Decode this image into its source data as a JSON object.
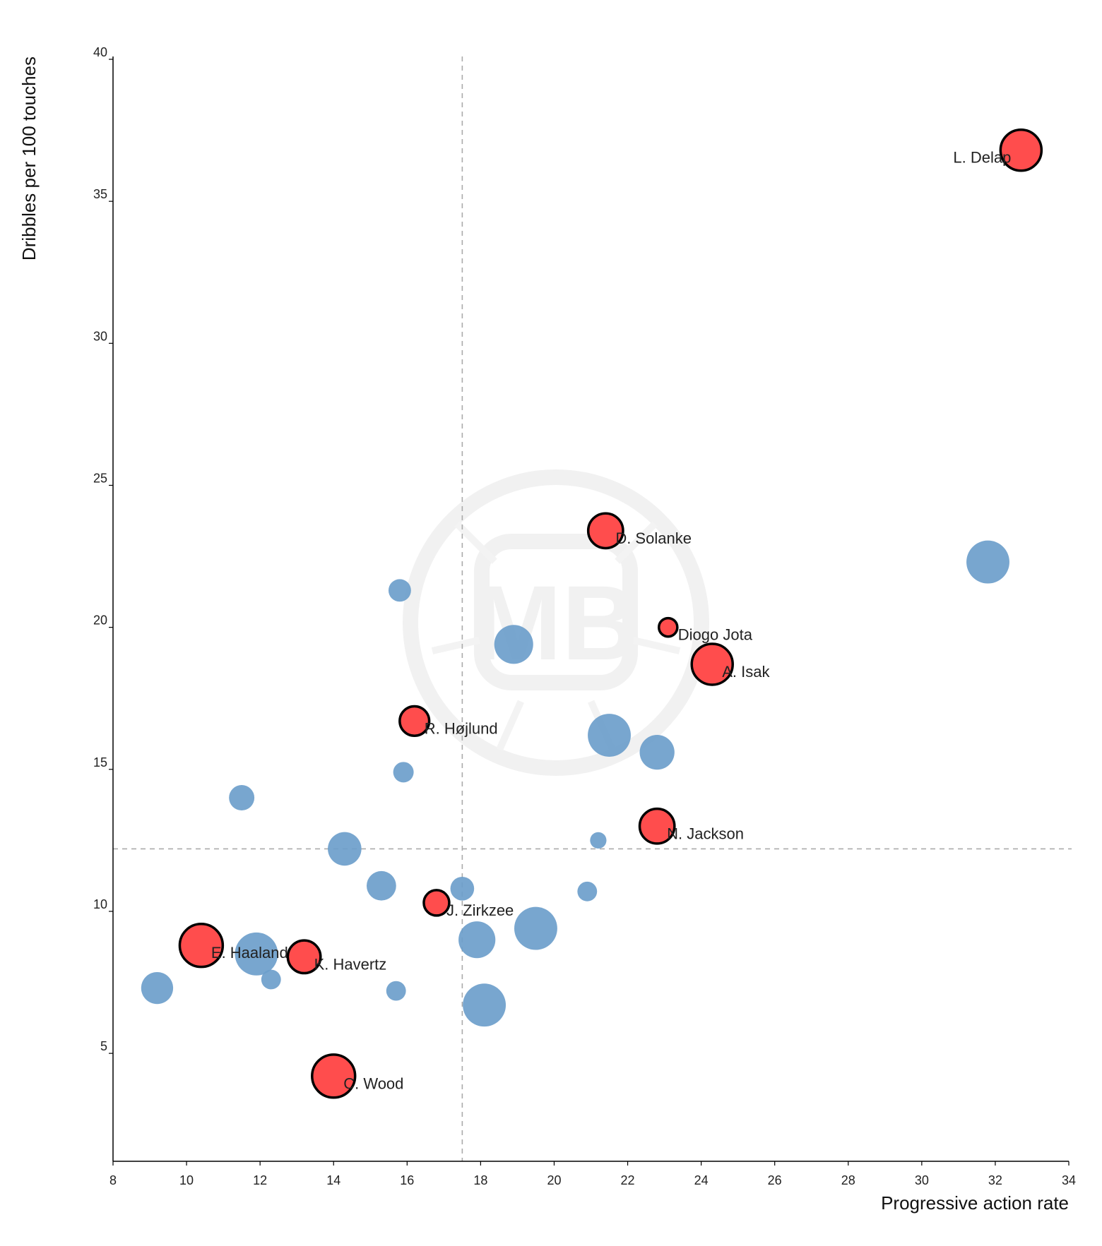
{
  "chart_data": {
    "type": "scatter",
    "title": "",
    "xlabel": "Progressive action rate",
    "ylabel": "Dribbles per 100 touches",
    "xlim": [
      8,
      34
    ],
    "ylim": [
      1.2,
      40
    ],
    "x_ticks": [
      "8",
      "10",
      "12",
      "14",
      "16",
      "18",
      "20",
      "22",
      "24",
      "26",
      "28",
      "30",
      "32",
      "34"
    ],
    "y_ticks": [
      "5",
      "10",
      "15",
      "20",
      "25",
      "30",
      "35",
      "40"
    ],
    "grid": false,
    "reference_lines": {
      "x": 17.5,
      "y": 12.2
    },
    "colors": {
      "highlight": "#ff4d4d",
      "other": "#6d9ecb",
      "outline": "#000000",
      "reference_line": "#aaaaaa"
    },
    "watermark": "MB",
    "series": [
      {
        "points": [
          {
            "x": 32.7,
            "y": 36.8,
            "size": 1.0,
            "label": "L. Delap",
            "label_side": "left"
          },
          {
            "x": 21.4,
            "y": 23.4,
            "size": 0.85,
            "label": "D. Solanke"
          },
          {
            "x": 23.1,
            "y": 20.0,
            "size": 0.45,
            "label": "Diogo Jota"
          },
          {
            "x": 24.3,
            "y": 18.7,
            "size": 1.0,
            "label": "A. Isak"
          },
          {
            "x": 16.2,
            "y": 16.7,
            "size": 0.72,
            "label": "R. Højlund"
          },
          {
            "x": 22.8,
            "y": 13.0,
            "size": 0.85,
            "label": "N. Jackson"
          },
          {
            "x": 16.8,
            "y": 10.3,
            "size": 0.62,
            "label": "J. Zirkzee"
          },
          {
            "x": 10.4,
            "y": 8.8,
            "size": 1.05,
            "label": "E. Haaland"
          },
          {
            "x": 13.2,
            "y": 8.4,
            "size": 0.8,
            "label": "K. Havertz"
          },
          {
            "x": 14.0,
            "y": 4.2,
            "size": 1.05,
            "label": "C. Wood"
          }
        ]
      },
      {
        "points": [
          {
            "x": 31.8,
            "y": 22.3,
            "size": 1.05
          },
          {
            "x": 15.8,
            "y": 21.3,
            "size": 0.55
          },
          {
            "x": 18.9,
            "y": 19.4,
            "size": 0.95
          },
          {
            "x": 21.5,
            "y": 16.2,
            "size": 1.05
          },
          {
            "x": 22.8,
            "y": 15.6,
            "size": 0.85
          },
          {
            "x": 15.9,
            "y": 14.9,
            "size": 0.5
          },
          {
            "x": 11.5,
            "y": 14.0,
            "size": 0.62
          },
          {
            "x": 14.3,
            "y": 12.2,
            "size": 0.82
          },
          {
            "x": 21.2,
            "y": 12.5,
            "size": 0.4
          },
          {
            "x": 15.3,
            "y": 10.9,
            "size": 0.72
          },
          {
            "x": 17.5,
            "y": 10.8,
            "size": 0.58
          },
          {
            "x": 20.9,
            "y": 10.7,
            "size": 0.48
          },
          {
            "x": 19.5,
            "y": 9.4,
            "size": 1.05
          },
          {
            "x": 17.9,
            "y": 9.0,
            "size": 0.9
          },
          {
            "x": 11.9,
            "y": 8.5,
            "size": 1.05
          },
          {
            "x": 12.3,
            "y": 7.6,
            "size": 0.48
          },
          {
            "x": 9.2,
            "y": 7.3,
            "size": 0.78
          },
          {
            "x": 15.7,
            "y": 7.2,
            "size": 0.48
          },
          {
            "x": 18.1,
            "y": 6.7,
            "size": 1.05
          }
        ]
      }
    ]
  }
}
